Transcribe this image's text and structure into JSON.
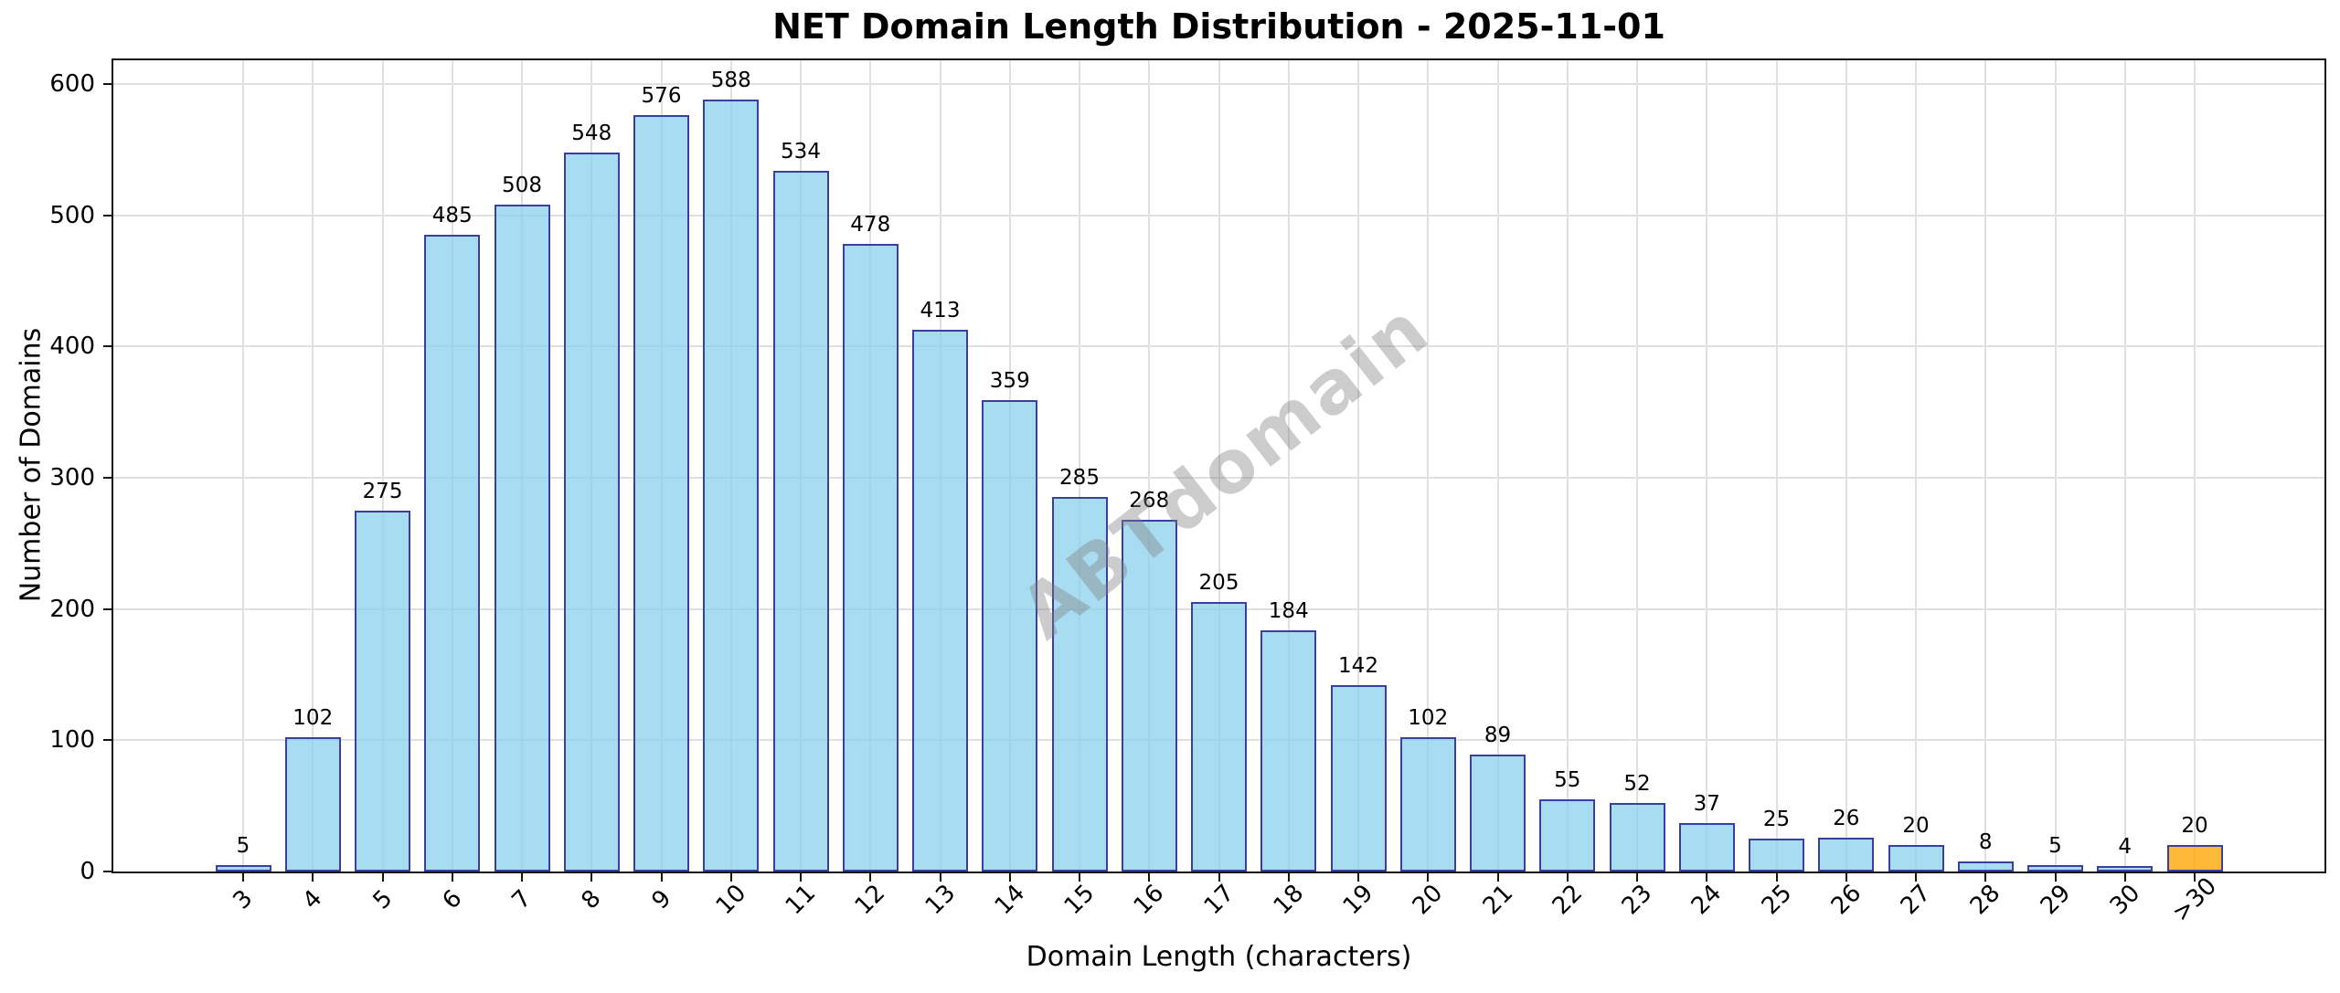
{
  "chart_data": {
    "type": "bar",
    "title": "NET Domain Length Distribution - 2025-11-01",
    "xlabel": "Domain Length (characters)",
    "ylabel": "Number of Domains",
    "watermark": "ABTdomain",
    "categories": [
      "3",
      "4",
      "5",
      "6",
      "7",
      "8",
      "9",
      "10",
      "11",
      "12",
      "13",
      "14",
      "15",
      "16",
      "17",
      "18",
      "19",
      "20",
      "21",
      "22",
      "23",
      "24",
      "25",
      "26",
      "27",
      "28",
      "29",
      "30",
      ">30"
    ],
    "values": [
      5,
      102,
      275,
      485,
      508,
      548,
      576,
      588,
      534,
      478,
      413,
      359,
      285,
      268,
      205,
      184,
      142,
      102,
      89,
      55,
      52,
      37,
      25,
      26,
      20,
      8,
      5,
      4,
      20
    ],
    "yticks": [
      0,
      100,
      200,
      300,
      400,
      500,
      600
    ],
    "ylim": [
      0,
      618
    ],
    "grid": true,
    "legend_position": "none",
    "colors": {
      "bar_fill": "rgba(135,206,235,0.72)",
      "bar_edge": "#3A3FA0",
      "highlight_fill": "rgba(255,165,0,0.78)",
      "highlight_edge": "#3A3FA0",
      "grid": "#E0E0E0",
      "spine": "#141414",
      "watermark": "rgba(128,128,128,0.40)",
      "text": "#000000"
    },
    "highlight_category": ">30"
  }
}
